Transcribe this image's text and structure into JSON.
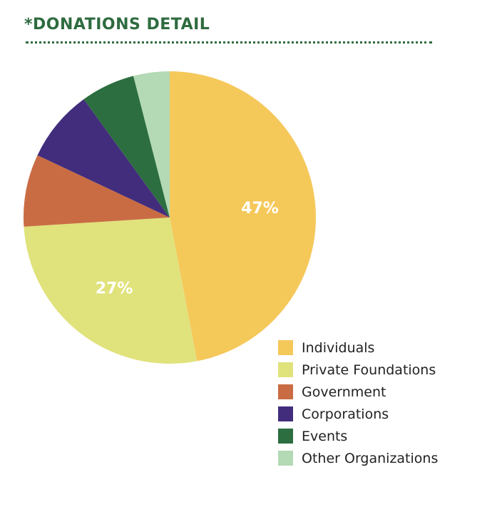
{
  "title": "*DONATIONS DETAIL",
  "chart_data": {
    "type": "pie",
    "title": "*DONATIONS DETAIL",
    "legend_position": "bottom-right",
    "slices": [
      {
        "name": "Individuals",
        "value": 47,
        "label": "47%",
        "color": "#f5c85a"
      },
      {
        "name": "Private Foundations",
        "value": 27,
        "label": "27%",
        "color": "#e0e27c"
      },
      {
        "name": "Government",
        "value": 8,
        "label": "",
        "color": "#c96c43"
      },
      {
        "name": "Corporations",
        "value": 8,
        "label": "",
        "color": "#422d7d"
      },
      {
        "name": "Events",
        "value": 6,
        "label": "",
        "color": "#2c6e3f"
      },
      {
        "name": "Other Organizations",
        "value": 4,
        "label": "",
        "color": "#b3d9b5"
      }
    ]
  },
  "legend": {
    "items": [
      {
        "label": "Individuals",
        "color": "#f5c85a"
      },
      {
        "label": "Private Foundations",
        "color": "#e0e27c"
      },
      {
        "label": "Government",
        "color": "#c96c43"
      },
      {
        "label": "Corporations",
        "color": "#422d7d"
      },
      {
        "label": "Events",
        "color": "#2c6e3f"
      },
      {
        "label": "Other Organizations",
        "color": "#b3d9b5"
      }
    ]
  }
}
